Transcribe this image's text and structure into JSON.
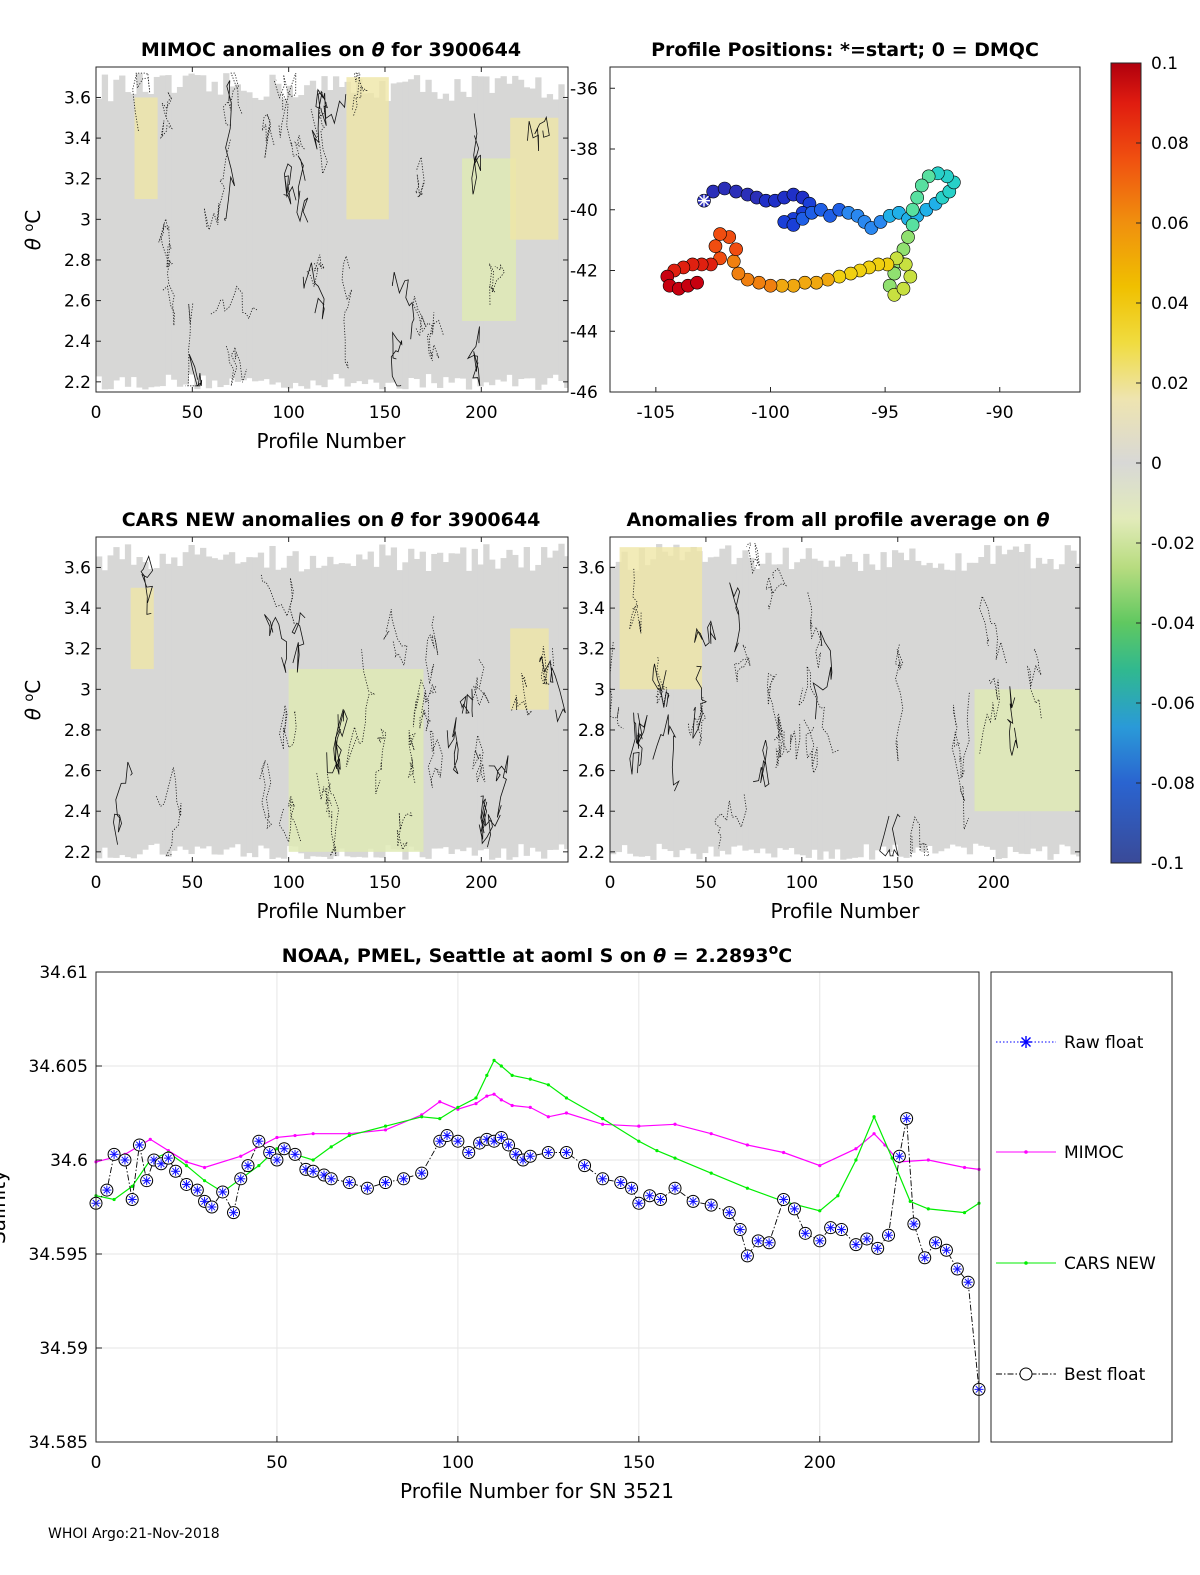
{
  "footer": "WHOI Argo:21-Nov-2018",
  "colorbar": {
    "ticks": [
      "0.1",
      "0.08",
      "0.06",
      "0.04",
      "0.02",
      "0",
      "-0.02",
      "-0.04",
      "-0.06",
      "-0.08",
      "-0.1"
    ],
    "range": [
      -0.1,
      0.1
    ],
    "colors": [
      "#3b4b9a",
      "#2f6fd6",
      "#2aa4e0",
      "#3cc8a0",
      "#56c85a",
      "#a9d866",
      "#e4ecb8",
      "#d6d6d6",
      "#f0e6a8",
      "#f0d000",
      "#f3a020",
      "#ef6a10",
      "#e02010",
      "#b0000e"
    ]
  },
  "chart_data": [
    {
      "id": "mimoc",
      "type": "heatmap",
      "title_prefix": "MIMOC anomalies on ",
      "title_symbol": "θ",
      "title_suffix": "  for 3900644",
      "xlabel": "Profile Number",
      "ylabel_symbol": "θ",
      "ylabel_unit_sup": "o",
      "ylabel_unit": "C",
      "xlim": [
        0,
        245
      ],
      "ylim": [
        2.15,
        3.75
      ],
      "xticks": [
        0,
        50,
        100,
        150,
        200
      ],
      "yticks": [
        2.2,
        2.4,
        2.6,
        2.8,
        3,
        3.2,
        3.4,
        3.6
      ],
      "ytick_labels": [
        "2.2",
        "2.4",
        "2.6",
        "2.8",
        "3",
        "3.2",
        "3.4",
        "3.6"
      ],
      "warm_patches": [
        [
          20,
          32,
          3.1,
          3.6
        ],
        [
          130,
          152,
          3.0,
          3.7
        ],
        [
          215,
          240,
          2.9,
          3.5
        ]
      ],
      "cool_patches": [
        [
          190,
          218,
          2.5,
          3.3
        ]
      ]
    },
    {
      "id": "positions",
      "type": "scatter",
      "title": "Profile Positions: *=start; 0 = DMQC",
      "xlim": [
        -107,
        -86.5
      ],
      "ylim": [
        -46,
        -35.3
      ],
      "xticks": [
        -105,
        -100,
        -95,
        -90
      ],
      "yticks": [
        -36,
        -38,
        -40,
        -42,
        -44,
        -46
      ],
      "start": [
        -102.9,
        -39.7
      ],
      "track": [
        [
          -102.9,
          -39.7
        ],
        [
          -102.5,
          -39.4
        ],
        [
          -102.0,
          -39.3
        ],
        [
          -101.5,
          -39.4
        ],
        [
          -101.0,
          -39.5
        ],
        [
          -100.6,
          -39.6
        ],
        [
          -100.2,
          -39.7
        ],
        [
          -99.8,
          -39.7
        ],
        [
          -99.4,
          -39.6
        ],
        [
          -99.0,
          -39.5
        ],
        [
          -98.6,
          -39.6
        ],
        [
          -98.3,
          -39.8
        ],
        [
          -98.6,
          -40.1
        ],
        [
          -99.0,
          -40.3
        ],
        [
          -99.4,
          -40.4
        ],
        [
          -99.0,
          -40.5
        ],
        [
          -98.6,
          -40.3
        ],
        [
          -98.2,
          -40.1
        ],
        [
          -97.8,
          -40.0
        ],
        [
          -97.4,
          -40.2
        ],
        [
          -97.0,
          -40.0
        ],
        [
          -96.6,
          -40.1
        ],
        [
          -96.2,
          -40.2
        ],
        [
          -95.9,
          -40.4
        ],
        [
          -95.6,
          -40.6
        ],
        [
          -95.2,
          -40.4
        ],
        [
          -94.8,
          -40.2
        ],
        [
          -94.4,
          -40.1
        ],
        [
          -94.0,
          -40.3
        ],
        [
          -93.6,
          -40.2
        ],
        [
          -93.2,
          -40.0
        ],
        [
          -92.8,
          -39.8
        ],
        [
          -92.5,
          -39.6
        ],
        [
          -92.2,
          -39.4
        ],
        [
          -92.0,
          -39.1
        ],
        [
          -92.3,
          -38.9
        ],
        [
          -92.7,
          -38.8
        ],
        [
          -93.1,
          -38.9
        ],
        [
          -93.4,
          -39.2
        ],
        [
          -93.6,
          -39.6
        ],
        [
          -93.8,
          -40.0
        ],
        [
          -93.8,
          -40.5
        ],
        [
          -94.0,
          -40.9
        ],
        [
          -94.2,
          -41.3
        ],
        [
          -94.4,
          -41.7
        ],
        [
          -94.6,
          -42.1
        ],
        [
          -94.8,
          -42.5
        ],
        [
          -94.6,
          -42.8
        ],
        [
          -94.2,
          -42.6
        ],
        [
          -93.9,
          -42.2
        ],
        [
          -94.1,
          -41.8
        ],
        [
          -94.5,
          -41.6
        ],
        [
          -94.9,
          -41.8
        ],
        [
          -95.3,
          -41.8
        ],
        [
          -95.7,
          -41.9
        ],
        [
          -96.1,
          -42.0
        ],
        [
          -96.5,
          -42.1
        ],
        [
          -97.0,
          -42.2
        ],
        [
          -97.5,
          -42.3
        ],
        [
          -98.0,
          -42.4
        ],
        [
          -98.5,
          -42.4
        ],
        [
          -99.0,
          -42.5
        ],
        [
          -99.5,
          -42.5
        ],
        [
          -100.0,
          -42.5
        ],
        [
          -100.5,
          -42.4
        ],
        [
          -101.0,
          -42.3
        ],
        [
          -101.4,
          -42.1
        ],
        [
          -101.6,
          -41.7
        ],
        [
          -101.5,
          -41.3
        ],
        [
          -101.8,
          -40.9
        ],
        [
          -102.2,
          -40.8
        ],
        [
          -102.4,
          -41.2
        ],
        [
          -102.2,
          -41.6
        ],
        [
          -102.6,
          -41.8
        ],
        [
          -103.0,
          -41.8
        ],
        [
          -103.4,
          -41.8
        ],
        [
          -103.8,
          -41.9
        ],
        [
          -104.2,
          -42.0
        ],
        [
          -104.5,
          -42.2
        ],
        [
          -104.4,
          -42.5
        ],
        [
          -104.0,
          -42.6
        ],
        [
          -103.6,
          -42.5
        ],
        [
          -103.2,
          -42.4
        ]
      ]
    },
    {
      "id": "cars",
      "type": "heatmap",
      "title_prefix": "CARS NEW anomalies on ",
      "title_symbol": "θ",
      "title_suffix": " for 3900644",
      "xlabel": "Profile Number",
      "ylabel_symbol": "θ",
      "ylabel_unit_sup": "o",
      "ylabel_unit": "C",
      "xlim": [
        0,
        245
      ],
      "ylim": [
        2.15,
        3.75
      ],
      "xticks": [
        0,
        50,
        100,
        150,
        200
      ],
      "yticks": [
        2.2,
        2.4,
        2.6,
        2.8,
        3,
        3.2,
        3.4,
        3.6
      ],
      "ytick_labels": [
        "2.2",
        "2.4",
        "2.6",
        "2.8",
        "3",
        "3.2",
        "3.4",
        "3.6"
      ],
      "warm_patches": [
        [
          18,
          30,
          3.1,
          3.5
        ],
        [
          215,
          235,
          2.9,
          3.3
        ]
      ],
      "cool_patches": [
        [
          100,
          170,
          2.2,
          3.1
        ]
      ]
    },
    {
      "id": "all_profile",
      "type": "heatmap",
      "title_prefix": "Anomalies from all profile average on ",
      "title_symbol": "θ",
      "title_suffix": "",
      "xlabel": "Profile Number",
      "xlim": [
        0,
        245
      ],
      "ylim": [
        2.15,
        3.75
      ],
      "xticks": [
        0,
        50,
        100,
        150,
        200
      ],
      "yticks": [
        2.2,
        2.4,
        2.6,
        2.8,
        3,
        3.2,
        3.4,
        3.6
      ],
      "ytick_labels": [
        "2.2",
        "2.4",
        "2.6",
        "2.8",
        "3",
        "3.2",
        "3.4",
        "3.6"
      ],
      "warm_patches": [
        [
          5,
          48,
          3.0,
          3.7
        ]
      ],
      "cool_patches": [
        [
          190,
          245,
          2.4,
          3.0
        ]
      ]
    },
    {
      "id": "salinity",
      "type": "line",
      "title_prefix": "NOAA, PMEL, Seattle at aoml S on ",
      "title_symbol": "θ",
      "title_value": " = 2.2893",
      "title_sup": "o",
      "title_unit": "C",
      "xlabel": "Profile Number for SN 3521",
      "ylabel": "Salinity",
      "xlim": [
        0,
        244
      ],
      "ylim": [
        34.585,
        34.61
      ],
      "xticks": [
        0,
        50,
        100,
        150,
        200
      ],
      "yticks": [
        34.585,
        34.59,
        34.595,
        34.6,
        34.605,
        34.61
      ],
      "ytick_labels": [
        "34.585",
        "34.59",
        "34.595",
        "34.6",
        "34.605",
        "34.61"
      ],
      "legend": [
        "Raw float",
        "MIMOC",
        "CARS NEW",
        "Best float"
      ],
      "series": [
        {
          "name": "MIMOC",
          "color": "#ff00ff",
          "x": [
            0,
            8,
            15,
            20,
            25,
            30,
            40,
            50,
            55,
            60,
            70,
            80,
            90,
            95,
            100,
            105,
            108,
            110,
            112,
            115,
            120,
            125,
            130,
            140,
            150,
            160,
            170,
            180,
            190,
            200,
            210,
            215,
            218,
            222,
            230,
            240,
            244
          ],
          "values": [
            34.5999,
            34.6003,
            34.6011,
            34.6005,
            34.5999,
            34.5996,
            34.6002,
            34.6012,
            34.6013,
            34.6014,
            34.6014,
            34.6016,
            34.6024,
            34.6031,
            34.6027,
            34.603,
            34.6034,
            34.6035,
            34.6032,
            34.6029,
            34.6028,
            34.6023,
            34.6025,
            34.6019,
            34.6018,
            34.6019,
            34.6014,
            34.6008,
            34.6004,
            34.5997,
            34.6006,
            34.6014,
            34.6008,
            34.5999,
            34.6,
            34.5996,
            34.5995
          ]
        },
        {
          "name": "CARS NEW",
          "color": "#00ee00",
          "x": [
            0,
            5,
            10,
            15,
            20,
            25,
            30,
            35,
            40,
            45,
            50,
            55,
            60,
            65,
            70,
            80,
            90,
            95,
            100,
            105,
            108,
            110,
            112,
            115,
            120,
            125,
            130,
            140,
            150,
            155,
            160,
            170,
            180,
            190,
            200,
            205,
            210,
            215,
            220,
            225,
            230,
            240,
            244
          ],
          "values": [
            34.5981,
            34.5979,
            34.5986,
            34.6,
            34.6004,
            34.5997,
            34.5989,
            34.5983,
            34.599,
            34.5997,
            34.6006,
            34.6003,
            34.6,
            34.6007,
            34.6013,
            34.6018,
            34.6023,
            34.6022,
            34.6028,
            34.6033,
            34.6045,
            34.6053,
            34.605,
            34.6045,
            34.6043,
            34.604,
            34.6033,
            34.6022,
            34.601,
            34.6005,
            34.6001,
            34.5993,
            34.5985,
            34.5978,
            34.5973,
            34.5981,
            34.6,
            34.6023,
            34.6001,
            34.5978,
            34.5974,
            34.5972,
            34.5977
          ]
        },
        {
          "name": "Best float",
          "color": "#000000",
          "x": [
            0,
            3,
            5,
            8,
            10,
            12,
            14,
            16,
            18,
            20,
            22,
            25,
            28,
            30,
            32,
            35,
            38,
            40,
            42,
            45,
            48,
            50,
            52,
            55,
            58,
            60,
            63,
            65,
            70,
            75,
            80,
            85,
            90,
            95,
            97,
            100,
            103,
            106,
            108,
            110,
            112,
            114,
            116,
            118,
            120,
            125,
            130,
            135,
            140,
            145,
            148,
            150,
            153,
            156,
            160,
            165,
            170,
            175,
            178,
            180,
            183,
            186,
            190,
            193,
            196,
            200,
            203,
            206,
            210,
            213,
            216,
            219,
            222,
            224,
            226,
            229,
            232,
            235,
            238,
            241,
            244
          ],
          "values": [
            34.5977,
            34.5984,
            34.6003,
            34.6,
            34.5979,
            34.6008,
            34.5989,
            34.6,
            34.5998,
            34.6001,
            34.5994,
            34.5987,
            34.5984,
            34.5978,
            34.5975,
            34.5983,
            34.5972,
            34.599,
            34.5997,
            34.601,
            34.6004,
            34.6,
            34.6006,
            34.6003,
            34.5995,
            34.5994,
            34.5992,
            34.599,
            34.5988,
            34.5985,
            34.5988,
            34.599,
            34.5993,
            34.601,
            34.6013,
            34.601,
            34.6004,
            34.6009,
            34.6011,
            34.601,
            34.6012,
            34.6008,
            34.6003,
            34.6,
            34.6002,
            34.6004,
            34.6004,
            34.5997,
            34.599,
            34.5988,
            34.5985,
            34.5977,
            34.5981,
            34.5979,
            34.5985,
            34.5978,
            34.5976,
            34.5972,
            34.5963,
            34.5949,
            34.5957,
            34.5956,
            34.5979,
            34.5974,
            34.5961,
            34.5957,
            34.5964,
            34.5963,
            34.5955,
            34.5958,
            34.5953,
            34.596,
            34.6002,
            34.6022,
            34.5966,
            34.5948,
            34.5956,
            34.5952,
            34.5942,
            34.5935,
            34.5878
          ]
        }
      ]
    }
  ]
}
